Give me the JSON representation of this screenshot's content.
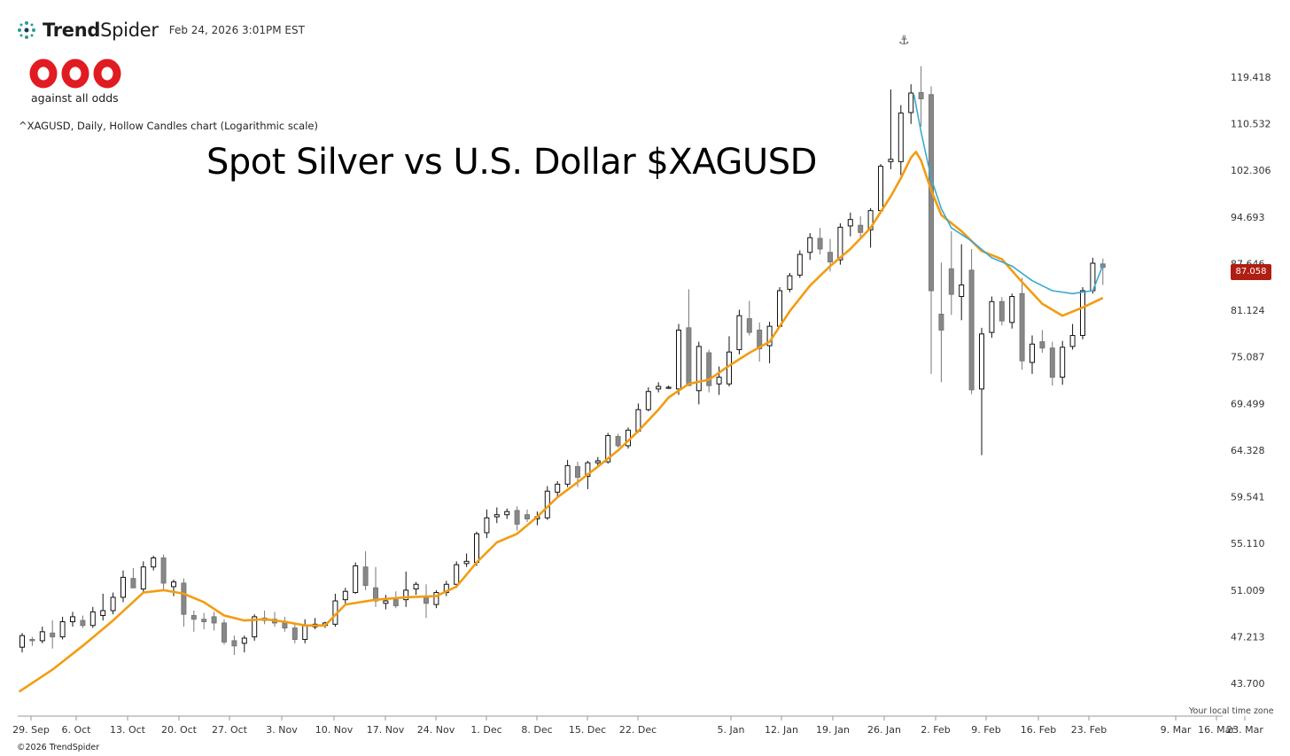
{
  "header": {
    "brand_bold": "Trend",
    "brand_light": "Spider",
    "timestamp": "Feb 24, 2026 3:01PM EST"
  },
  "logo": {
    "tagline": "against all odds"
  },
  "instrument_label": "^XAGUSD, Daily, Hollow Candles chart (Logarithmic scale)",
  "title": "Spot Silver vs U.S. Dollar $XAGUSD",
  "timezone_label": "Your local time zone",
  "copyright": "©2026 TrendSpider",
  "last_price": "87.058",
  "icons": {
    "anchor": "anchor-icon",
    "brand": "trendspider-logo-icon"
  },
  "colors": {
    "ma_line": "#f39c12",
    "avwap_line": "#3aa9cf",
    "candle_down_fill": "#888888",
    "price_tag": "#b01e12"
  },
  "chart_data": {
    "type": "candlestick",
    "scale": "log",
    "ylim": [
      42.0,
      123.0
    ],
    "y_ticks": [
      "119.418",
      "110.532",
      "102.306",
      "94.693",
      "87.646",
      "81.124",
      "75.087",
      "69.499",
      "64.328",
      "59.541",
      "55.110",
      "51.009",
      "47.213",
      "43.700"
    ],
    "x_ticks": [
      "29. Sep",
      "6. Oct",
      "13. Oct",
      "20. Oct",
      "27. Oct",
      "3. Nov",
      "10. Nov",
      "17. Nov",
      "24. Nov",
      "1. Dec",
      "8. Dec",
      "15. Dec",
      "22. Dec",
      "5. Jan",
      "12. Jan",
      "19. Jan",
      "26. Jan",
      "2. Feb",
      "9. Feb",
      "16. Feb",
      "23. Feb",
      "9. Mar",
      "16. Mar",
      "23. Mar"
    ],
    "candles": [
      {
        "x": 0,
        "o": 46.4,
        "h": 47.5,
        "l": 46.0,
        "c": 47.3
      },
      {
        "x": 1,
        "o": 47.0,
        "h": 47.2,
        "l": 46.5,
        "c": 46.9
      },
      {
        "x": 2,
        "o": 46.9,
        "h": 48.0,
        "l": 46.7,
        "c": 47.6
      },
      {
        "x": 3,
        "o": 47.5,
        "h": 48.5,
        "l": 46.3,
        "c": 47.2
      },
      {
        "x": 4,
        "o": 47.2,
        "h": 48.8,
        "l": 47.0,
        "c": 48.4
      },
      {
        "x": 5,
        "o": 48.4,
        "h": 49.2,
        "l": 48.0,
        "c": 48.8
      },
      {
        "x": 6,
        "o": 48.5,
        "h": 48.9,
        "l": 47.9,
        "c": 48.1
      },
      {
        "x": 7,
        "o": 48.1,
        "h": 49.6,
        "l": 47.9,
        "c": 49.2
      },
      {
        "x": 8,
        "o": 48.9,
        "h": 50.7,
        "l": 48.5,
        "c": 49.3
      },
      {
        "x": 9,
        "o": 49.3,
        "h": 50.8,
        "l": 49.0,
        "c": 50.4
      },
      {
        "x": 10,
        "o": 50.4,
        "h": 52.7,
        "l": 50.0,
        "c": 52.1
      },
      {
        "x": 11,
        "o": 52.0,
        "h": 52.9,
        "l": 51.5,
        "c": 51.2
      },
      {
        "x": 12,
        "o": 51.1,
        "h": 53.5,
        "l": 50.8,
        "c": 53.0
      },
      {
        "x": 13,
        "o": 53.0,
        "h": 54.0,
        "l": 52.7,
        "c": 53.8
      },
      {
        "x": 14,
        "o": 53.8,
        "h": 54.1,
        "l": 51.0,
        "c": 51.6
      },
      {
        "x": 15,
        "o": 51.3,
        "h": 51.9,
        "l": 50.5,
        "c": 51.7
      },
      {
        "x": 16,
        "o": 51.6,
        "h": 52.0,
        "l": 48.0,
        "c": 49.0
      },
      {
        "x": 17,
        "o": 48.9,
        "h": 49.3,
        "l": 47.6,
        "c": 48.6
      },
      {
        "x": 18,
        "o": 48.6,
        "h": 49.1,
        "l": 47.8,
        "c": 48.4
      },
      {
        "x": 19,
        "o": 48.8,
        "h": 49.2,
        "l": 47.7,
        "c": 48.3
      },
      {
        "x": 20,
        "o": 48.3,
        "h": 48.6,
        "l": 46.6,
        "c": 46.8
      },
      {
        "x": 21,
        "o": 46.9,
        "h": 47.3,
        "l": 45.8,
        "c": 46.5
      },
      {
        "x": 22,
        "o": 46.7,
        "h": 47.3,
        "l": 46.0,
        "c": 47.1
      },
      {
        "x": 23,
        "o": 47.2,
        "h": 49.0,
        "l": 46.9,
        "c": 48.8
      },
      {
        "x": 24,
        "o": 48.7,
        "h": 49.3,
        "l": 48.2,
        "c": 48.5
      },
      {
        "x": 25,
        "o": 48.6,
        "h": 49.2,
        "l": 48.0,
        "c": 48.3
      },
      {
        "x": 26,
        "o": 48.4,
        "h": 48.8,
        "l": 47.6,
        "c": 47.9
      },
      {
        "x": 27,
        "o": 47.9,
        "h": 48.2,
        "l": 46.7,
        "c": 47.0
      },
      {
        "x": 28,
        "o": 47.0,
        "h": 48.6,
        "l": 46.7,
        "c": 48.1
      },
      {
        "x": 29,
        "o": 48.0,
        "h": 48.7,
        "l": 47.8,
        "c": 48.2
      },
      {
        "x": 30,
        "o": 48.1,
        "h": 48.4,
        "l": 47.9,
        "c": 48.3
      },
      {
        "x": 31,
        "o": 48.2,
        "h": 50.7,
        "l": 48.0,
        "c": 50.1
      },
      {
        "x": 32,
        "o": 50.2,
        "h": 51.2,
        "l": 49.8,
        "c": 50.9
      },
      {
        "x": 33,
        "o": 50.8,
        "h": 53.4,
        "l": 50.7,
        "c": 53.1
      },
      {
        "x": 34,
        "o": 53.0,
        "h": 54.4,
        "l": 51.0,
        "c": 51.4
      },
      {
        "x": 35,
        "o": 51.2,
        "h": 53.0,
        "l": 49.6,
        "c": 50.1
      },
      {
        "x": 36,
        "o": 49.9,
        "h": 50.6,
        "l": 49.4,
        "c": 50.1
      },
      {
        "x": 37,
        "o": 50.2,
        "h": 50.9,
        "l": 49.5,
        "c": 49.7
      },
      {
        "x": 38,
        "o": 50.2,
        "h": 52.6,
        "l": 49.6,
        "c": 51.0
      },
      {
        "x": 39,
        "o": 51.1,
        "h": 51.7,
        "l": 50.6,
        "c": 51.5
      },
      {
        "x": 40,
        "o": 50.5,
        "h": 51.5,
        "l": 48.7,
        "c": 49.9
      },
      {
        "x": 41,
        "o": 49.8,
        "h": 51.0,
        "l": 49.5,
        "c": 50.8
      },
      {
        "x": 42,
        "o": 50.8,
        "h": 51.8,
        "l": 50.5,
        "c": 51.5
      },
      {
        "x": 43,
        "o": 51.5,
        "h": 53.5,
        "l": 51.2,
        "c": 53.2
      },
      {
        "x": 44,
        "o": 53.3,
        "h": 54.2,
        "l": 53.0,
        "c": 53.5
      },
      {
        "x": 45,
        "o": 53.4,
        "h": 56.2,
        "l": 53.1,
        "c": 56.0
      },
      {
        "x": 46,
        "o": 56.1,
        "h": 58.3,
        "l": 55.6,
        "c": 57.5
      },
      {
        "x": 47,
        "o": 57.6,
        "h": 58.5,
        "l": 57.0,
        "c": 57.8
      },
      {
        "x": 48,
        "o": 57.8,
        "h": 58.4,
        "l": 57.4,
        "c": 58.1
      },
      {
        "x": 49,
        "o": 58.2,
        "h": 58.6,
        "l": 56.3,
        "c": 56.9
      },
      {
        "x": 50,
        "o": 57.8,
        "h": 58.3,
        "l": 57.1,
        "c": 57.4
      },
      {
        "x": 51,
        "o": 57.4,
        "h": 58.1,
        "l": 56.8,
        "c": 57.6
      },
      {
        "x": 52,
        "o": 57.5,
        "h": 60.6,
        "l": 57.3,
        "c": 60.1
      },
      {
        "x": 53,
        "o": 60.0,
        "h": 61.1,
        "l": 59.6,
        "c": 60.8
      },
      {
        "x": 54,
        "o": 60.8,
        "h": 63.3,
        "l": 60.5,
        "c": 62.7
      },
      {
        "x": 55,
        "o": 62.6,
        "h": 63.1,
        "l": 60.5,
        "c": 61.5
      },
      {
        "x": 56,
        "o": 61.6,
        "h": 63.2,
        "l": 60.3,
        "c": 63.0
      },
      {
        "x": 57,
        "o": 63.0,
        "h": 63.6,
        "l": 62.7,
        "c": 63.2
      },
      {
        "x": 58,
        "o": 63.1,
        "h": 66.2,
        "l": 62.9,
        "c": 65.9
      },
      {
        "x": 59,
        "o": 65.8,
        "h": 66.1,
        "l": 64.6,
        "c": 64.8
      },
      {
        "x": 60,
        "o": 64.8,
        "h": 66.8,
        "l": 64.5,
        "c": 66.5
      },
      {
        "x": 61,
        "o": 66.4,
        "h": 69.5,
        "l": 66.2,
        "c": 68.8
      },
      {
        "x": 62,
        "o": 68.8,
        "h": 71.4,
        "l": 68.6,
        "c": 70.9
      },
      {
        "x": 63,
        "o": 71.2,
        "h": 72.0,
        "l": 70.8,
        "c": 71.5
      },
      {
        "x": 64,
        "o": 71.4,
        "h": 71.6,
        "l": 71.2,
        "c": 71.4
      },
      {
        "x": 65,
        "o": 71.2,
        "h": 79.3,
        "l": 70.5,
        "c": 78.5
      },
      {
        "x": 66,
        "o": 78.8,
        "h": 84.0,
        "l": 72.0,
        "c": 71.6
      },
      {
        "x": 67,
        "o": 71.0,
        "h": 77.0,
        "l": 69.4,
        "c": 76.4
      },
      {
        "x": 68,
        "o": 75.6,
        "h": 76.0,
        "l": 70.8,
        "c": 71.6
      },
      {
        "x": 69,
        "o": 71.8,
        "h": 73.9,
        "l": 70.5,
        "c": 72.6
      },
      {
        "x": 70,
        "o": 71.8,
        "h": 77.7,
        "l": 71.5,
        "c": 75.7
      },
      {
        "x": 71,
        "o": 76.0,
        "h": 81.2,
        "l": 75.4,
        "c": 80.4
      },
      {
        "x": 72,
        "o": 80.0,
        "h": 82.4,
        "l": 77.8,
        "c": 78.2
      },
      {
        "x": 73,
        "o": 78.5,
        "h": 79.5,
        "l": 74.5,
        "c": 76.1
      },
      {
        "x": 74,
        "o": 76.5,
        "h": 79.6,
        "l": 74.3,
        "c": 79.0
      },
      {
        "x": 75,
        "o": 79.0,
        "h": 84.3,
        "l": 78.8,
        "c": 83.8
      },
      {
        "x": 76,
        "o": 84.0,
        "h": 86.3,
        "l": 83.6,
        "c": 85.9
      },
      {
        "x": 77,
        "o": 86.0,
        "h": 89.6,
        "l": 85.6,
        "c": 89.0
      },
      {
        "x": 78,
        "o": 89.3,
        "h": 92.2,
        "l": 88.2,
        "c": 91.5
      },
      {
        "x": 79,
        "o": 91.4,
        "h": 93.0,
        "l": 89.0,
        "c": 89.8
      },
      {
        "x": 80,
        "o": 89.3,
        "h": 91.3,
        "l": 86.5,
        "c": 87.9
      },
      {
        "x": 81,
        "o": 88.2,
        "h": 93.7,
        "l": 87.5,
        "c": 93.1
      },
      {
        "x": 82,
        "o": 93.3,
        "h": 95.4,
        "l": 91.7,
        "c": 94.3
      },
      {
        "x": 83,
        "o": 93.4,
        "h": 94.8,
        "l": 91.5,
        "c": 92.3
      },
      {
        "x": 84,
        "o": 92.7,
        "h": 96.1,
        "l": 90.0,
        "c": 95.7
      },
      {
        "x": 85,
        "o": 95.7,
        "h": 103.4,
        "l": 95.3,
        "c": 103.0
      },
      {
        "x": 86,
        "o": 103.8,
        "h": 117.0,
        "l": 102.5,
        "c": 104.2
      },
      {
        "x": 87,
        "o": 103.8,
        "h": 114.0,
        "l": 101.5,
        "c": 112.5
      },
      {
        "x": 88,
        "o": 112.6,
        "h": 118.0,
        "l": 110.5,
        "c": 116.3
      },
      {
        "x": 89,
        "o": 116.4,
        "h": 121.6,
        "l": 110.0,
        "c": 115.2
      },
      {
        "x": 90,
        "o": 116.0,
        "h": 117.6,
        "l": 73.0,
        "c": 83.8
      },
      {
        "x": 91,
        "o": 80.6,
        "h": 87.8,
        "l": 72.0,
        "c": 78.5
      },
      {
        "x": 92,
        "o": 86.9,
        "h": 92.5,
        "l": 80.5,
        "c": 83.3
      },
      {
        "x": 93,
        "o": 83.0,
        "h": 90.5,
        "l": 79.8,
        "c": 84.6
      },
      {
        "x": 94,
        "o": 86.7,
        "h": 89.8,
        "l": 70.6,
        "c": 71.1
      },
      {
        "x": 95,
        "o": 71.2,
        "h": 78.8,
        "l": 63.8,
        "c": 78.0
      },
      {
        "x": 96,
        "o": 78.2,
        "h": 83.0,
        "l": 77.5,
        "c": 82.3
      },
      {
        "x": 97,
        "o": 82.3,
        "h": 82.9,
        "l": 79.1,
        "c": 79.7
      },
      {
        "x": 98,
        "o": 79.5,
        "h": 83.4,
        "l": 78.7,
        "c": 83.0
      },
      {
        "x": 99,
        "o": 83.4,
        "h": 85.6,
        "l": 73.5,
        "c": 74.6
      },
      {
        "x": 100,
        "o": 74.4,
        "h": 77.8,
        "l": 73.0,
        "c": 76.7
      },
      {
        "x": 101,
        "o": 77.0,
        "h": 78.5,
        "l": 75.6,
        "c": 76.2
      },
      {
        "x": 102,
        "o": 76.2,
        "h": 77.0,
        "l": 71.6,
        "c": 72.6
      },
      {
        "x": 103,
        "o": 72.6,
        "h": 77.1,
        "l": 71.7,
        "c": 76.3
      },
      {
        "x": 104,
        "o": 76.4,
        "h": 79.3,
        "l": 76.0,
        "c": 77.8
      },
      {
        "x": 105,
        "o": 77.8,
        "h": 84.3,
        "l": 77.3,
        "c": 83.8
      },
      {
        "x": 106,
        "o": 83.8,
        "h": 88.5,
        "l": 83.4,
        "c": 87.7
      },
      {
        "x": 107,
        "o": 87.6,
        "h": 88.4,
        "l": 84.6,
        "c": 87.1
      }
    ],
    "series": [
      {
        "points": [
          [
            -0.3,
            43.1
          ],
          [
            3,
            44.7
          ],
          [
            6,
            46.5
          ],
          [
            9,
            48.5
          ],
          [
            12,
            50.8
          ],
          [
            14,
            51.0
          ],
          [
            16,
            50.7
          ],
          [
            18,
            50.0
          ],
          [
            20,
            48.9
          ],
          [
            22,
            48.5
          ],
          [
            24,
            48.6
          ],
          [
            26,
            48.4
          ],
          [
            28,
            48.1
          ],
          [
            30,
            48.1
          ],
          [
            32,
            49.8
          ],
          [
            35,
            50.2
          ],
          [
            38,
            50.4
          ],
          [
            41,
            50.5
          ],
          [
            43,
            51.3
          ],
          [
            45,
            53.4
          ],
          [
            47,
            55.2
          ],
          [
            49,
            56.0
          ],
          [
            51,
            57.6
          ],
          [
            53,
            59.5
          ],
          [
            55,
            61.0
          ],
          [
            57,
            62.6
          ],
          [
            59,
            64.3
          ],
          [
            61,
            66.4
          ],
          [
            63,
            68.8
          ],
          [
            64,
            70.2
          ],
          [
            65,
            71.0
          ],
          [
            66,
            71.8
          ],
          [
            68,
            72.3
          ],
          [
            70,
            74.0
          ],
          [
            72,
            75.6
          ],
          [
            74,
            77.0
          ],
          [
            76,
            81.0
          ],
          [
            78,
            84.5
          ],
          [
            80,
            87.3
          ],
          [
            82,
            89.8
          ],
          [
            84,
            93.0
          ],
          [
            86,
            98.0
          ],
          [
            87,
            101.0
          ],
          [
            88,
            104.5
          ],
          [
            88.5,
            105.5
          ],
          [
            89,
            104.0
          ],
          [
            90,
            99.0
          ],
          [
            91,
            95.0
          ],
          [
            93,
            92.5
          ],
          [
            95,
            89.5
          ],
          [
            97,
            88.3
          ],
          [
            99,
            85.0
          ],
          [
            101,
            82.0
          ],
          [
            103,
            80.4
          ],
          [
            105,
            81.5
          ],
          [
            107,
            82.8
          ]
        ]
      },
      {
        "points": [
          [
            88.3,
            116.0
          ],
          [
            89,
            109.0
          ],
          [
            90,
            101.0
          ],
          [
            91,
            96.0
          ],
          [
            92,
            93.0
          ],
          [
            94,
            91.0
          ],
          [
            96,
            88.5
          ],
          [
            98,
            87.3
          ],
          [
            100,
            85.2
          ],
          [
            102,
            83.8
          ],
          [
            104,
            83.4
          ],
          [
            105,
            83.6
          ],
          [
            106,
            83.8
          ],
          [
            107,
            87.4
          ]
        ]
      }
    ]
  }
}
